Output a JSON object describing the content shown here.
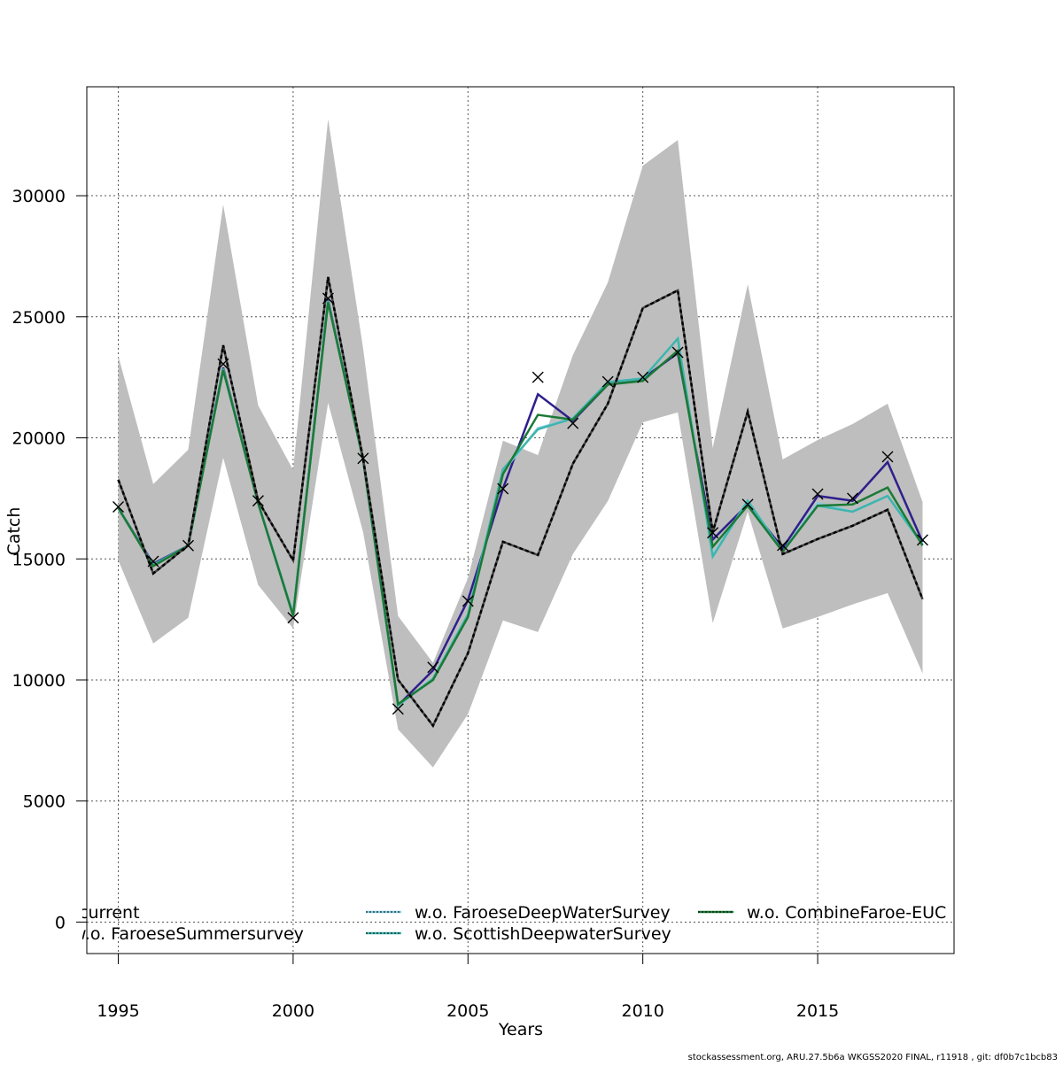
{
  "chart_data": {
    "type": "line",
    "title": "",
    "xlabel": "Years",
    "ylabel": "Catch",
    "xlim": [
      1994.1,
      2018.9
    ],
    "ylim": [
      -1300,
      34500
    ],
    "x_ticks": [
      1995,
      2000,
      2005,
      2010,
      2015
    ],
    "y_ticks": [
      0,
      5000,
      10000,
      15000,
      20000,
      25000,
      30000
    ],
    "grid": true,
    "legend_placement": "bottom",
    "x": [
      1995,
      1996,
      1997,
      1998,
      1999,
      2000,
      2001,
      2002,
      2003,
      2004,
      2005,
      2006,
      2007,
      2008,
      2009,
      2010,
      2011,
      2012,
      2013,
      2014,
      2015,
      2016,
      2017,
      2018
    ],
    "observed": {
      "marker": "x",
      "values": [
        17150,
        14900,
        15550,
        23050,
        17400,
        12570,
        25760,
        19150,
        8800,
        10520,
        13260,
        17900,
        22500,
        20600,
        22320,
        22500,
        23530,
        16080,
        17250,
        15560,
        17680,
        17500,
        19220,
        15780
      ]
    },
    "confidence_band": {
      "color": "#bebebe",
      "upper": [
        23380,
        18090,
        19510,
        29630,
        21340,
        18670,
        33170,
        23710,
        12640,
        10710,
        14210,
        19880,
        19290,
        23420,
        26420,
        31240,
        32300,
        19580,
        26340,
        19110,
        19910,
        20570,
        21410,
        17350
      ],
      "lower": [
        14940,
        11510,
        12570,
        19180,
        13920,
        12130,
        21450,
        16110,
        7960,
        6390,
        8590,
        12460,
        11980,
        15200,
        17390,
        20640,
        21050,
        12350,
        16950,
        12130,
        12600,
        13120,
        13590,
        10270
      ]
    },
    "series": [
      {
        "name": "current",
        "color": "#000000",
        "dash": true,
        "values": [
          18270,
          14400,
          15560,
          23820,
          17400,
          14940,
          26640,
          19150,
          10010,
          8110,
          11110,
          15710,
          15160,
          18930,
          21410,
          25360,
          26090,
          16110,
          21080,
          15200,
          15820,
          16370,
          17030,
          13340
        ]
      },
      {
        "name": "w.o. FaroeseSummersurvey",
        "color": "#2e1f8c",
        "dash": false,
        "values": [
          17100,
          14800,
          15550,
          22900,
          17300,
          12700,
          25700,
          19100,
          8950,
          10400,
          13300,
          17900,
          21800,
          20700,
          22200,
          22450,
          23500,
          15800,
          17250,
          15450,
          17600,
          17400,
          19000,
          15700
        ]
      },
      {
        "name": "w.o. FaroeseDeepWaterSurvey",
        "color": "#86cde6",
        "dash": false,
        "values": [
          17100,
          14750,
          15550,
          22850,
          17300,
          12700,
          25650,
          19100,
          8950,
          10050,
          12700,
          18600,
          20400,
          20800,
          22300,
          22450,
          24100,
          15150,
          17400,
          15300,
          17300,
          16950,
          17600,
          15600
        ]
      },
      {
        "name": "w.o. ScottishDeepwaterSurvey",
        "color": "#3db5ad",
        "dash": false,
        "values": [
          17100,
          14750,
          15550,
          22850,
          17300,
          12700,
          25650,
          19100,
          8950,
          10050,
          12700,
          18700,
          20350,
          20800,
          22300,
          22450,
          24100,
          15100,
          17400,
          15300,
          17200,
          16950,
          17600,
          15600
        ]
      },
      {
        "name": "w.o. CombineFaroe-EUC",
        "color": "#1a7a36",
        "dash": false,
        "values": [
          17100,
          14700,
          15550,
          22800,
          17300,
          12650,
          25600,
          19100,
          9000,
          10000,
          12600,
          18500,
          20950,
          20750,
          22200,
          22350,
          23600,
          15500,
          17200,
          15300,
          17200,
          17250,
          17950,
          15550
        ]
      }
    ]
  },
  "footer": "stockassessment.org, ARU.27.5b6a  WKGSS2020  FINAL, r11918 , git: df0b7c1bcb83"
}
